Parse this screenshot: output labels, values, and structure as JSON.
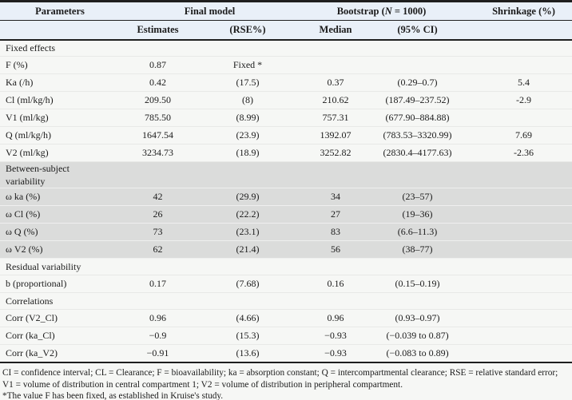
{
  "colors": {
    "header_bg": "#e9f0f8",
    "shaded_section_bg": "#dbdcdb",
    "page_bg": "#f6f7f5",
    "rule": "#1f1f1f"
  },
  "header": {
    "row1": {
      "parameters": "Parameters",
      "final_model": "Final model",
      "bootstrap_prefix": "Bootstrap (",
      "bootstrap_n": "N",
      "bootstrap_suffix": " = 1000)",
      "shrinkage": "Shrinkage (%)"
    },
    "row2": {
      "estimates": "Estimates",
      "rse": "(RSE%)",
      "median": "Median",
      "ci": "(95% CI)"
    }
  },
  "sections": [
    {
      "title": "Fixed effects",
      "shaded": false,
      "rows": [
        {
          "parameter": "F (%)",
          "estimate": "0.87",
          "rse": "Fixed *",
          "median": "",
          "ci": "",
          "shrinkage": ""
        },
        {
          "parameter": "Ka (/h)",
          "estimate": "0.42",
          "rse": "(17.5)",
          "median": "0.37",
          "ci": "(0.29–0.7)",
          "shrinkage": "5.4"
        },
        {
          "parameter": "Cl (ml/kg/h)",
          "estimate": "209.50",
          "rse": "(8)",
          "median": "210.62",
          "ci": "(187.49–237.52)",
          "shrinkage": "-2.9"
        },
        {
          "parameter": "V1 (ml/kg)",
          "estimate": "785.50",
          "rse": "(8.99)",
          "median": "757.31",
          "ci": "(677.90–884.88)",
          "shrinkage": ""
        },
        {
          "parameter": "Q (ml/kg/h)",
          "estimate": "1647.54",
          "rse": "(23.9)",
          "median": "1392.07",
          "ci": "(783.53–3320.99)",
          "shrinkage": "7.69"
        },
        {
          "parameter": "V2 (ml/kg)",
          "estimate": "3234.73",
          "rse": "(18.9)",
          "median": "3252.82",
          "ci": "(2830.4–4177.63)",
          "shrinkage": "-2.36"
        }
      ]
    },
    {
      "title": "Between-subject variability",
      "shaded": true,
      "rows": [
        {
          "parameter": "ω ka (%)",
          "estimate": "42",
          "rse": "(29.9)",
          "median": "34",
          "ci": "(23–57)",
          "shrinkage": ""
        },
        {
          "parameter": "ω Cl (%)",
          "estimate": "26",
          "rse": "(22.2)",
          "median": "27",
          "ci": "(19–36)",
          "shrinkage": ""
        },
        {
          "parameter": "ω Q (%)",
          "estimate": "73",
          "rse": "(23.1)",
          "median": "83",
          "ci": "(6.6–11.3)",
          "shrinkage": ""
        },
        {
          "parameter": "ω V2 (%)",
          "estimate": "62",
          "rse": "(21.4)",
          "median": "56",
          "ci": "(38–77)",
          "shrinkage": ""
        }
      ]
    },
    {
      "title": "Residual variability",
      "shaded": false,
      "rows": [
        {
          "parameter": "b (proportional)",
          "estimate": "0.17",
          "rse": "(7.68)",
          "median": "0.16",
          "ci": "(0.15–0.19)",
          "shrinkage": ""
        }
      ]
    },
    {
      "title": "Correlations",
      "shaded": false,
      "rows": [
        {
          "parameter": "Corr (V2_Cl)",
          "estimate": "0.96",
          "rse": "(4.66)",
          "median": "0.96",
          "ci": "(0.93–0.97)",
          "shrinkage": ""
        },
        {
          "parameter": "Corr (ka_Cl)",
          "estimate": "−0.9",
          "rse": "(15.3)",
          "median": "−0.93",
          "ci": "(−0.039 to 0.87)",
          "shrinkage": ""
        },
        {
          "parameter": "Corr (ka_V2)",
          "estimate": "−0.91",
          "rse": "(13.6)",
          "median": "−0.93",
          "ci": "(−0.083 to 0.89)",
          "shrinkage": ""
        }
      ]
    }
  ],
  "footnotes": {
    "abbreviations": "CI = confidence interval; CL = Clearance; F = bioavailability; ka = absorption constant; Q = intercompartmental clearance; RSE = relative standard error; V1 = volume of distribution in central compartment 1; V2 = volume of distribution in peripheral compartment.",
    "fixed_note": "*The value F has been fixed, as established in Kruise's study."
  }
}
